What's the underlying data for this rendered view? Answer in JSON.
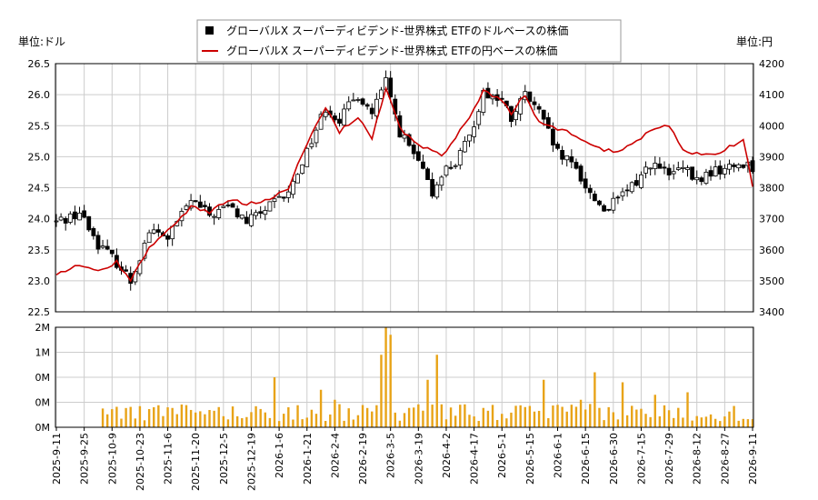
{
  "chart_data": {
    "type": "candlestick+line+bar",
    "legend": [
      {
        "label": "グローバルX スーパーディビデンド-世界株式 ETFのドルベースの株価",
        "color": "#000000",
        "marker": "square"
      },
      {
        "label": "グローバルX スーパーディビデンド-世界株式 ETFの円ベースの株価",
        "color": "#cc0000",
        "marker": "line"
      }
    ],
    "left_axis_label": "単位:ドル",
    "right_axis_label": "単位:円",
    "left_ylim": [
      22.5,
      26.5
    ],
    "left_ticks": [
      "22.5",
      "23.0",
      "23.5",
      "24.0",
      "24.5",
      "25.0",
      "25.5",
      "26.0",
      "26.5"
    ],
    "right_ylim": [
      3400,
      4200
    ],
    "right_ticks": [
      "3400",
      "3500",
      "3600",
      "3700",
      "3800",
      "3900",
      "4000",
      "4100",
      "4200"
    ],
    "volume_ticks": [
      "0M",
      "0M",
      "0M",
      "1M",
      "2M"
    ],
    "x_ticks": [
      "2025-9-11",
      "2025-9-25",
      "2025-10-9",
      "2025-10-23",
      "2025-11-6",
      "2025-11-20",
      "2025-12-5",
      "2025-12-19",
      "2026-1-6",
      "2026-1-21",
      "2026-2-4",
      "2026-2-19",
      "2026-3-5",
      "2026-3-19",
      "2026-4-2",
      "2026-4-17",
      "2026-5-1",
      "2026-5-15",
      "2026-6-1",
      "2026-6-15",
      "2026-6-30",
      "2026-7-15",
      "2026-7-29",
      "2026-8-12",
      "2026-8-27",
      "2026-9-11"
    ],
    "usd_close_anchors": [
      [
        0,
        23.95
      ],
      [
        5,
        24.1
      ],
      [
        9,
        23.6
      ],
      [
        13,
        23.3
      ],
      [
        16,
        23.0
      ],
      [
        20,
        23.8
      ],
      [
        24,
        23.7
      ],
      [
        29,
        24.3
      ],
      [
        33,
        24.05
      ],
      [
        37,
        24.2
      ],
      [
        41,
        23.95
      ],
      [
        45,
        24.15
      ],
      [
        50,
        24.4
      ],
      [
        54,
        25.1
      ],
      [
        58,
        25.8
      ],
      [
        61,
        25.6
      ],
      [
        65,
        26.0
      ],
      [
        68,
        25.7
      ],
      [
        71,
        26.2
      ],
      [
        74,
        25.4
      ],
      [
        78,
        24.9
      ],
      [
        81,
        24.4
      ],
      [
        83,
        24.75
      ],
      [
        86,
        24.9
      ],
      [
        89,
        25.3
      ],
      [
        92,
        26.05
      ],
      [
        96,
        25.9
      ],
      [
        98,
        25.6
      ],
      [
        101,
        26.0
      ],
      [
        104,
        25.7
      ],
      [
        108,
        25.05
      ],
      [
        112,
        24.8
      ],
      [
        115,
        24.4
      ],
      [
        118,
        24.15
      ],
      [
        121,
        24.3
      ],
      [
        125,
        24.6
      ],
      [
        128,
        24.9
      ],
      [
        132,
        24.7
      ],
      [
        135,
        24.8
      ],
      [
        138,
        24.6
      ],
      [
        141,
        24.75
      ],
      [
        144,
        24.8
      ],
      [
        148,
        24.9
      ],
      [
        150,
        24.85
      ]
    ],
    "jpy_close_anchors": [
      [
        0,
        3520
      ],
      [
        5,
        3550
      ],
      [
        9,
        3530
      ],
      [
        13,
        3560
      ],
      [
        16,
        3500
      ],
      [
        20,
        3610
      ],
      [
        24,
        3660
      ],
      [
        29,
        3740
      ],
      [
        33,
        3720
      ],
      [
        37,
        3760
      ],
      [
        41,
        3750
      ],
      [
        45,
        3760
      ],
      [
        50,
        3800
      ],
      [
        54,
        3940
      ],
      [
        58,
        4060
      ],
      [
        61,
        3980
      ],
      [
        65,
        4030
      ],
      [
        68,
        3960
      ],
      [
        71,
        4120
      ],
      [
        74,
        3990
      ],
      [
        78,
        3940
      ],
      [
        81,
        3920
      ],
      [
        83,
        3900
      ],
      [
        86,
        3960
      ],
      [
        89,
        4030
      ],
      [
        92,
        4110
      ],
      [
        96,
        4080
      ],
      [
        98,
        4040
      ],
      [
        101,
        4100
      ],
      [
        104,
        4010
      ],
      [
        108,
        3990
      ],
      [
        112,
        3970
      ],
      [
        115,
        3940
      ],
      [
        118,
        3920
      ],
      [
        121,
        3920
      ],
      [
        125,
        3950
      ],
      [
        128,
        3990
      ],
      [
        132,
        4000
      ],
      [
        135,
        3920
      ],
      [
        138,
        3910
      ],
      [
        141,
        3910
      ],
      [
        144,
        3920
      ],
      [
        148,
        3960
      ],
      [
        150,
        3800
      ]
    ],
    "volume_profile": "near zero first ~10 trading days; typical bars 0.2M–0.6M; spikes ~2.0M around 2026-3-1, ~1.5M around 2026-1-1 and 2026-3-15, ~1.1M around 2026-6-10 and 2026-7-3"
  }
}
